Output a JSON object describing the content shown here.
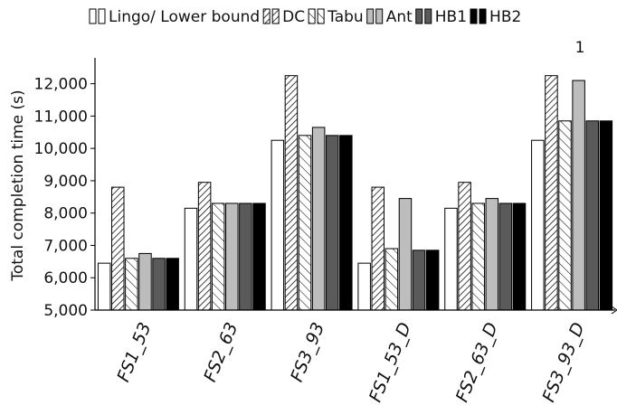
{
  "chart_data": {
    "type": "bar",
    "title": "",
    "xlabel": "",
    "ylabel": "Total completion time (s)",
    "ylim": [
      5000,
      12800
    ],
    "yticks": [
      5000,
      6000,
      7000,
      8000,
      9000,
      10000,
      11000,
      12000
    ],
    "ytick_labels": [
      "5,000",
      "6,000",
      "7,000",
      "8,000",
      "9,000",
      "10,000",
      "11,000",
      "12,000"
    ],
    "categories": [
      "FS1_53",
      "FS2_63",
      "FS3_93",
      "FS1_53_D",
      "FS2_63_D",
      "FS3_93_D"
    ],
    "grid": false,
    "legend_position": "top",
    "series": [
      {
        "name": "Lingo/ Lower bound",
        "pattern": "white",
        "color": "#ffffff",
        "values": [
          6450,
          8150,
          10250,
          6450,
          8150,
          10250
        ]
      },
      {
        "name": "DC",
        "pattern": "hatch-dense",
        "color": "#ffffff",
        "values": [
          8800,
          8950,
          12250,
          8800,
          8950,
          12250
        ]
      },
      {
        "name": "Tabu",
        "pattern": "hatch-sparse",
        "color": "#ffffff",
        "values": [
          6600,
          8300,
          10400,
          6900,
          8300,
          10850
        ]
      },
      {
        "name": "Ant",
        "pattern": "solid",
        "color": "#bdbdbd",
        "values": [
          6750,
          8300,
          10650,
          8450,
          8450,
          12100
        ]
      },
      {
        "name": "HB1",
        "pattern": "solid",
        "color": "#5a5a5a",
        "values": [
          6600,
          8300,
          10400,
          6850,
          8300,
          10850
        ]
      },
      {
        "name": "HB2",
        "pattern": "solid",
        "color": "#000000",
        "values": [
          6600,
          8300,
          10400,
          6850,
          8300,
          10850
        ]
      }
    ]
  },
  "legend_wrap_text": "1"
}
